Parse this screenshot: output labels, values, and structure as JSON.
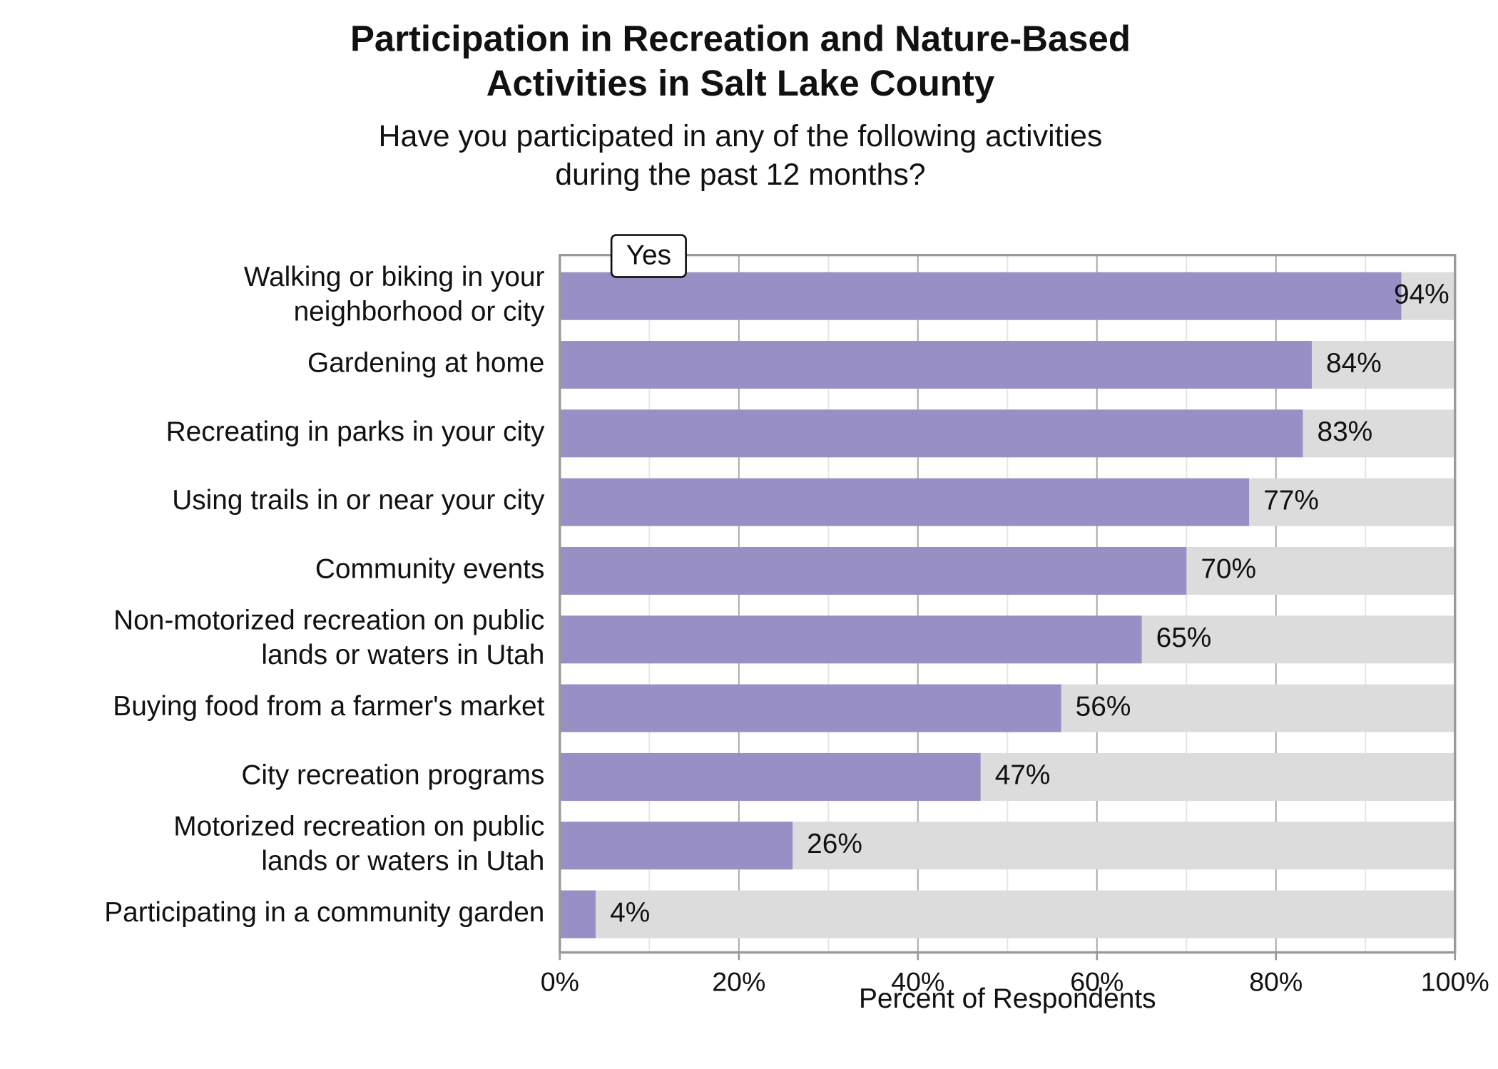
{
  "chart_data": {
    "type": "bar",
    "orientation": "horizontal",
    "title": "Participation in Recreation and Nature-Based\nActivities in Salt Lake County",
    "subtitle": "Have you participated in any of the following activities\nduring the past 12 months?",
    "xlabel": "Percent of Respondents",
    "categories": [
      "Walking or biking in your\nneighborhood or city",
      "Gardening at home",
      "Recreating in parks in your city",
      "Using trails in or near your city",
      "Community events",
      "Non-motorized recreation on public\nlands or waters in Utah",
      "Buying food from a farmer's market",
      "City recreation programs",
      "Motorized recreation on public\nlands or waters in Utah",
      "Participating in a community garden"
    ],
    "series": [
      {
        "name": "Yes",
        "color": "#9890c4",
        "values": [
          94,
          84,
          83,
          77,
          70,
          65,
          56,
          47,
          26,
          4
        ],
        "value_labels": [
          "94%",
          "84%",
          "83%",
          "77%",
          "70%",
          "65%",
          "56%",
          "47%",
          "26%",
          "4%"
        ]
      }
    ],
    "track_color": "#dcdcdc",
    "xlim": [
      0,
      100
    ],
    "xticks": [
      {
        "value": 0,
        "label": "0%"
      },
      {
        "value": 20,
        "label": "20%"
      },
      {
        "value": 40,
        "label": "40%"
      },
      {
        "value": 60,
        "label": "60%"
      },
      {
        "value": 80,
        "label": "80%"
      },
      {
        "value": 100,
        "label": "100%"
      }
    ],
    "minor_xticks": [
      10,
      30,
      50,
      70,
      90
    ],
    "grid": true
  }
}
